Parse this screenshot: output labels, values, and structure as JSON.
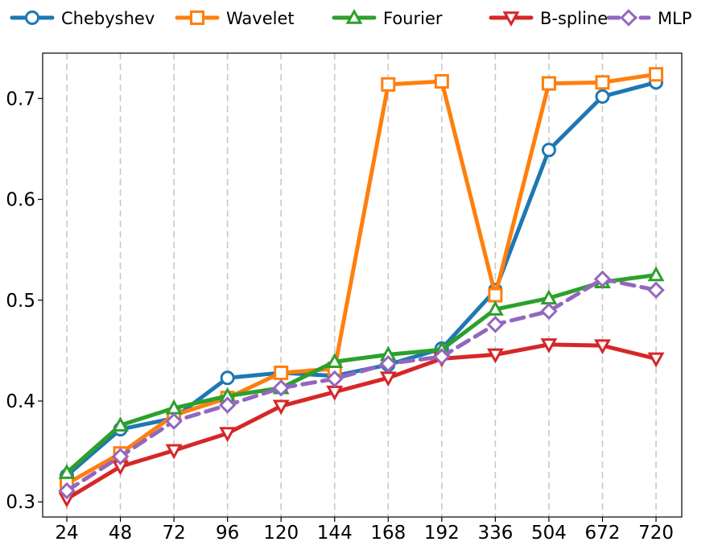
{
  "chart_data": {
    "type": "line",
    "categories": [
      "24",
      "48",
      "72",
      "96",
      "120",
      "144",
      "168",
      "192",
      "336",
      "504",
      "672",
      "720"
    ],
    "ylim": [
      0.285,
      0.745
    ],
    "yticks": [
      0.3,
      0.4,
      0.5,
      0.6,
      0.7
    ],
    "ytick_labels": [
      "0.3",
      "0.4",
      "0.5",
      "0.6",
      "0.7"
    ],
    "grid": "vertical dashed",
    "legend": "top, horizontal",
    "series": [
      {
        "name": "Chebyshev",
        "color": "#1f77b4",
        "marker": "circle",
        "dashed": false,
        "values": [
          0.326,
          0.372,
          0.383,
          0.423,
          0.428,
          0.425,
          0.436,
          0.452,
          0.51,
          0.649,
          0.702,
          0.716
        ]
      },
      {
        "name": "Wavelet",
        "color": "#ff7f0e",
        "marker": "square",
        "dashed": false,
        "values": [
          0.318,
          0.348,
          0.386,
          0.403,
          0.428,
          0.432,
          0.714,
          0.717,
          0.505,
          0.715,
          0.716,
          0.724
        ]
      },
      {
        "name": "Fourier",
        "color": "#2ca02c",
        "marker": "triangle-up",
        "dashed": false,
        "values": [
          0.329,
          0.376,
          0.393,
          0.405,
          0.413,
          0.439,
          0.446,
          0.451,
          0.491,
          0.502,
          0.518,
          0.525
        ]
      },
      {
        "name": "B-spline",
        "color": "#d62728",
        "marker": "triangle-down",
        "dashed": false,
        "values": [
          0.303,
          0.335,
          0.351,
          0.368,
          0.395,
          0.409,
          0.423,
          0.442,
          0.446,
          0.456,
          0.455,
          0.442
        ]
      },
      {
        "name": "MLP",
        "color": "#9467bd",
        "marker": "diamond",
        "dashed": true,
        "values": [
          0.311,
          0.345,
          0.38,
          0.396,
          0.413,
          0.422,
          0.437,
          0.444,
          0.476,
          0.489,
          0.521,
          0.51
        ]
      }
    ]
  }
}
